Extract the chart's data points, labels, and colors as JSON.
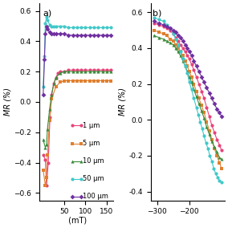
{
  "colors": {
    "1um": "#e8437a",
    "5um": "#e08030",
    "10um": "#3a8c3a",
    "50um": "#40c8c8",
    "100um": "#7030a0"
  },
  "panel_b": {
    "title": "b)",
    "ylabel": "MR (%)",
    "xlim": [
      -320,
      -90
    ],
    "ylim": [
      -0.45,
      0.65
    ],
    "yticks": [
      -0.4,
      -0.2,
      0.0,
      0.2,
      0.4,
      0.6
    ],
    "xticks": [
      -300,
      -200
    ],
    "series": [
      {
        "label": "1 μm",
        "color_key": "1um",
        "marker": "o",
        "x": [
          -310,
          -295,
          -280,
          -270,
          -260,
          -250,
          -242,
          -235,
          -228,
          -220,
          -213,
          -206,
          -200,
          -193,
          -186,
          -178,
          -170,
          -162,
          -154,
          -146,
          -138,
          -130,
          -122,
          -114,
          -106,
          -100
        ],
        "y": [
          0.54,
          0.53,
          0.52,
          0.51,
          0.5,
          0.48,
          0.46,
          0.44,
          0.42,
          0.4,
          0.38,
          0.36,
          0.34,
          0.31,
          0.28,
          0.24,
          0.2,
          0.16,
          0.12,
          0.07,
          0.02,
          -0.03,
          -0.07,
          -0.11,
          -0.14,
          -0.17
        ]
      },
      {
        "label": "5 μm",
        "color_key": "5um",
        "marker": "s",
        "x": [
          -310,
          -295,
          -280,
          -270,
          -260,
          -250,
          -242,
          -235,
          -228,
          -220,
          -213,
          -206,
          -200,
          -193,
          -186,
          -178,
          -170,
          -162,
          -154,
          -146,
          -138,
          -130,
          -122,
          -114,
          -106,
          -100
        ],
        "y": [
          0.5,
          0.49,
          0.48,
          0.47,
          0.45,
          0.44,
          0.42,
          0.4,
          0.38,
          0.36,
          0.33,
          0.3,
          0.27,
          0.24,
          0.2,
          0.16,
          0.12,
          0.08,
          0.04,
          -0.01,
          -0.06,
          -0.11,
          -0.16,
          -0.2,
          -0.24,
          -0.27
        ]
      },
      {
        "label": "10 μm",
        "color_key": "10um",
        "marker": "^",
        "x": [
          -310,
          -295,
          -280,
          -270,
          -260,
          -250,
          -242,
          -235,
          -228,
          -220,
          -213,
          -206,
          -200,
          -193,
          -186,
          -178,
          -170,
          -162,
          -154,
          -146,
          -138,
          -130,
          -122,
          -114,
          -106,
          -100
        ],
        "y": [
          0.47,
          0.46,
          0.45,
          0.44,
          0.43,
          0.42,
          0.4,
          0.38,
          0.36,
          0.33,
          0.3,
          0.27,
          0.24,
          0.21,
          0.17,
          0.13,
          0.09,
          0.05,
          0.01,
          -0.04,
          -0.08,
          -0.12,
          -0.15,
          -0.18,
          -0.21,
          -0.22
        ]
      },
      {
        "label": "50 μm",
        "color_key": "50um",
        "marker": "o",
        "x": [
          -310,
          -295,
          -280,
          -270,
          -260,
          -250,
          -242,
          -235,
          -228,
          -220,
          -213,
          -206,
          -200,
          -193,
          -186,
          -178,
          -172,
          -166,
          -160,
          -154,
          -148,
          -142,
          -136,
          -130,
          -124,
          -118,
          -112,
          -106,
          -100
        ],
        "y": [
          0.57,
          0.56,
          0.55,
          0.53,
          0.51,
          0.48,
          0.45,
          0.42,
          0.38,
          0.34,
          0.3,
          0.26,
          0.21,
          0.17,
          0.12,
          0.07,
          0.03,
          -0.01,
          -0.05,
          -0.09,
          -0.13,
          -0.16,
          -0.2,
          -0.23,
          -0.27,
          -0.3,
          -0.32,
          -0.34,
          -0.35
        ]
      },
      {
        "label": "100 μm",
        "color_key": "100um",
        "marker": "D",
        "x": [
          -310,
          -295,
          -280,
          -270,
          -260,
          -250,
          -242,
          -235,
          -228,
          -220,
          -213,
          -206,
          -200,
          -193,
          -186,
          -178,
          -170,
          -162,
          -154,
          -146,
          -138,
          -130,
          -122,
          -114,
          -106,
          -100
        ],
        "y": [
          0.55,
          0.54,
          0.53,
          0.52,
          0.51,
          0.5,
          0.49,
          0.47,
          0.46,
          0.44,
          0.42,
          0.4,
          0.38,
          0.36,
          0.33,
          0.3,
          0.27,
          0.24,
          0.21,
          0.18,
          0.15,
          0.12,
          0.09,
          0.06,
          0.04,
          0.02
        ]
      }
    ]
  },
  "panel_a": {
    "title": "a)",
    "ylabel": "MR (%)",
    "xlim": [
      -10,
      165
    ],
    "ylim": [
      -0.65,
      0.65
    ],
    "xticks": [
      50,
      100,
      150
    ],
    "xlabel": " (mT)",
    "series": [
      {
        "color_key": "1um",
        "marker": "o",
        "x": [
          0,
          5,
          8,
          12,
          16,
          20,
          25,
          30,
          35,
          40,
          50,
          60,
          70,
          80,
          90,
          100,
          110,
          120,
          130,
          140,
          150,
          160
        ],
        "y": [
          -0.35,
          -0.38,
          -0.55,
          -0.4,
          -0.1,
          0.05,
          0.12,
          0.16,
          0.19,
          0.2,
          0.2,
          0.21,
          0.21,
          0.21,
          0.21,
          0.21,
          0.21,
          0.21,
          0.21,
          0.21,
          0.21,
          0.21
        ]
      },
      {
        "color_key": "5um",
        "marker": "s",
        "x": [
          0,
          5,
          8,
          10,
          15,
          20,
          30,
          40,
          50,
          60,
          70,
          80,
          90,
          100,
          110,
          120,
          130,
          140,
          150,
          160
        ],
        "y": [
          -0.45,
          -0.55,
          -0.5,
          -0.35,
          -0.12,
          0.02,
          0.1,
          0.13,
          0.14,
          0.14,
          0.14,
          0.14,
          0.14,
          0.14,
          0.14,
          0.14,
          0.14,
          0.14,
          0.14,
          0.14
        ]
      },
      {
        "color_key": "10um",
        "marker": "^",
        "x": [
          0,
          5,
          8,
          10,
          15,
          20,
          25,
          30,
          40,
          50,
          60,
          70,
          80,
          90,
          100,
          110,
          120,
          130,
          140,
          150,
          160
        ],
        "y": [
          -0.25,
          -0.3,
          -0.28,
          -0.18,
          -0.05,
          0.05,
          0.12,
          0.16,
          0.19,
          0.2,
          0.2,
          0.2,
          0.2,
          0.2,
          0.2,
          0.2,
          0.2,
          0.2,
          0.2,
          0.2,
          0.2
        ]
      },
      {
        "color_key": "50um",
        "marker": "o",
        "x": [
          0,
          3,
          5,
          8,
          10,
          15,
          20,
          25,
          30,
          40,
          50,
          60,
          70,
          80,
          90,
          100,
          110,
          120,
          130,
          140,
          150,
          160
        ],
        "y": [
          0.1,
          0.3,
          0.52,
          0.56,
          0.54,
          0.51,
          0.5,
          0.5,
          0.5,
          0.5,
          0.5,
          0.49,
          0.49,
          0.49,
          0.49,
          0.49,
          0.49,
          0.49,
          0.49,
          0.49,
          0.49,
          0.49
        ]
      },
      {
        "color_key": "100um",
        "marker": "D",
        "x": [
          0,
          3,
          5,
          8,
          10,
          15,
          20,
          25,
          30,
          40,
          50,
          60,
          70,
          80,
          90,
          100,
          110,
          120,
          130,
          140,
          150,
          160
        ],
        "y": [
          0.05,
          0.28,
          0.45,
          0.5,
          0.48,
          0.46,
          0.45,
          0.45,
          0.45,
          0.45,
          0.45,
          0.44,
          0.44,
          0.44,
          0.44,
          0.44,
          0.44,
          0.44,
          0.44,
          0.44,
          0.44,
          0.44
        ]
      }
    ],
    "legend": [
      {
        "label": "1 μm",
        "color_key": "1um",
        "marker": "o"
      },
      {
        "label": "5 μm",
        "color_key": "5um",
        "marker": "s"
      },
      {
        "label": "10 μm",
        "color_key": "10um",
        "marker": "^"
      },
      {
        "label": "50 μm",
        "color_key": "50um",
        "marker": "o"
      },
      {
        "label": "100 μm",
        "color_key": "100um",
        "marker": "D"
      }
    ]
  }
}
